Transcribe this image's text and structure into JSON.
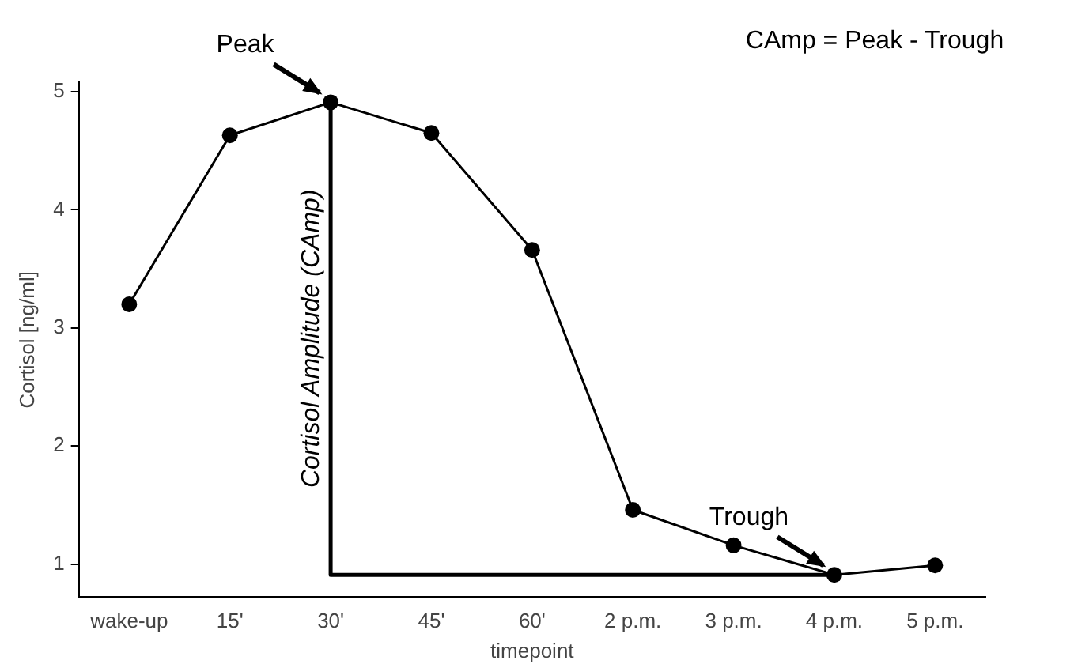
{
  "chart_data": {
    "type": "line",
    "xlabel": "timepoint",
    "ylabel": "Cortisol [ng/ml]",
    "categories": [
      "wake-up",
      "15'",
      "30'",
      "45'",
      "60'",
      "2 p.m.",
      "3 p.m.",
      "4 p.m.",
      "5 p.m."
    ],
    "series": [
      {
        "color": "#000000",
        "values": [
          3.2,
          4.63,
          4.91,
          4.65,
          3.66,
          1.46,
          1.16,
          0.91,
          0.99
        ]
      },
      {
        "type": "line",
        "color": "#000000",
        "marker": "none",
        "x": [
          "30'",
          "30'",
          "4 p.m."
        ],
        "values": [
          4.91,
          0.91,
          0.91
        ]
      }
    ],
    "ylim": [
      0.72,
      5.08
    ],
    "yticks": [
      1,
      2,
      3,
      4,
      5
    ],
    "grid": false,
    "legend": false,
    "marker": "circle",
    "line_style": "solid",
    "annotations": [
      {
        "text": "Peak",
        "x": "30'",
        "y": 4.91
      },
      {
        "text": "Trough",
        "x": "4 p.m.",
        "y": 0.91
      },
      "Cortisol Amplitude (CAmp)",
      "CAmp = Peak - Trough"
    ]
  }
}
